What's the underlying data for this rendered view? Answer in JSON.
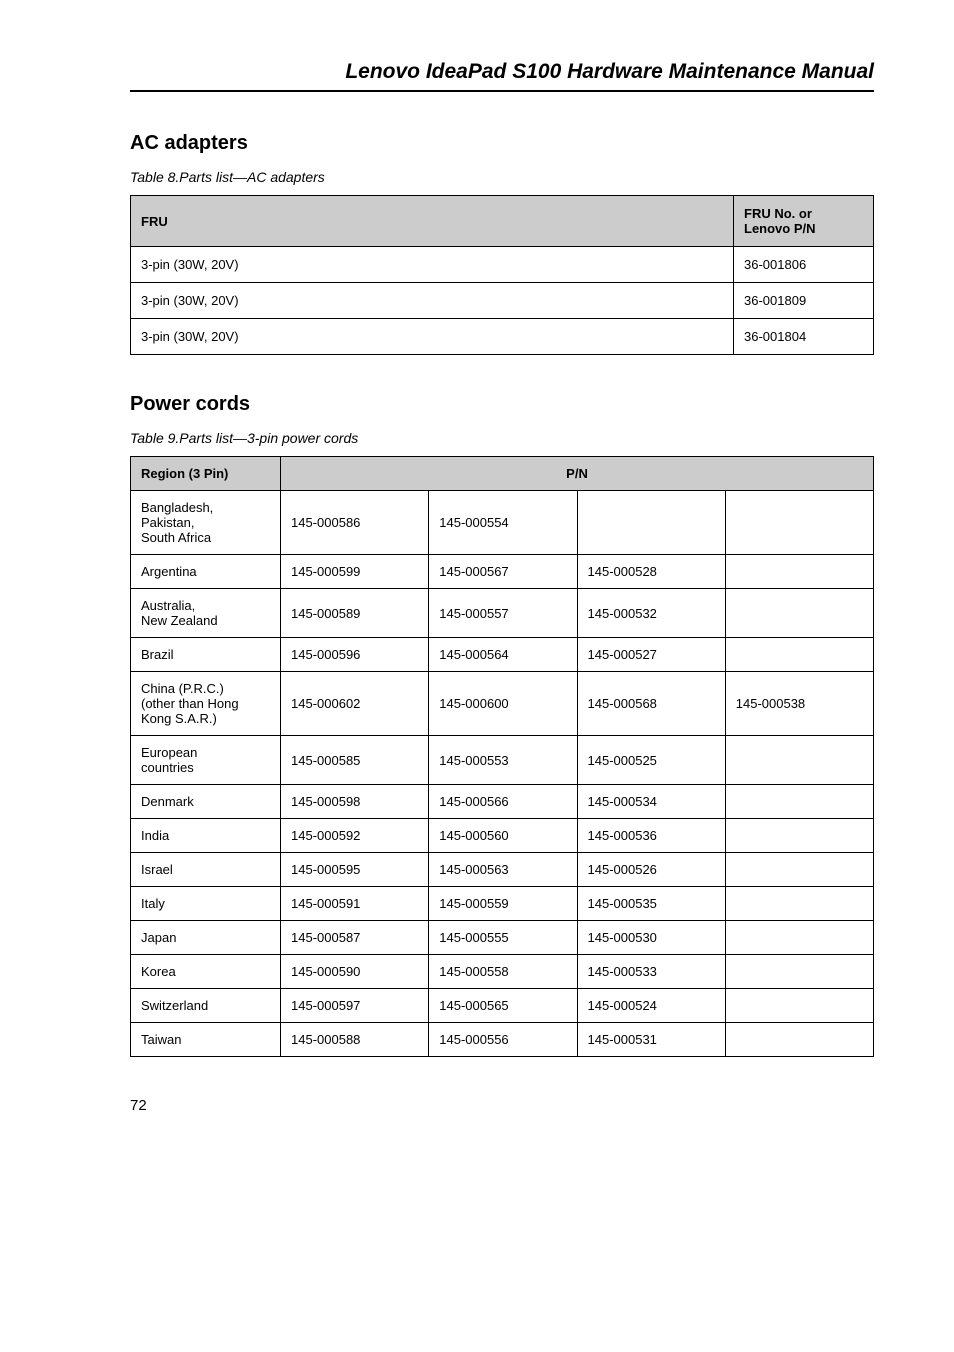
{
  "header": {
    "title": "Lenovo IdeaPad S100 Hardware Maintenance Manual"
  },
  "ac": {
    "heading": "AC adapters",
    "caption": "Table 8.Parts list—AC adapters",
    "col_fru": "FRU",
    "col_fruno_l1": "FRU No. or",
    "col_fruno_l2": "Lenovo P/N",
    "rows": [
      {
        "fru": "3-pin (30W, 20V)",
        "pn": "36-001806"
      },
      {
        "fru": "3-pin (30W, 20V)",
        "pn": "36-001809"
      },
      {
        "fru": "3-pin (30W, 20V)",
        "pn": "36-001804"
      }
    ]
  },
  "cords": {
    "heading": "Power cords",
    "caption": "Table 9.Parts list—3-pin power cords",
    "col_region": "Region (3 Pin)",
    "col_pn": "P/N",
    "rows": [
      {
        "region": "Bangladesh,\nPakistan,\nSouth Africa",
        "p1": "145-000586",
        "p2": "145-000554",
        "p3": "",
        "p4": "",
        "tall": true
      },
      {
        "region": "Argentina",
        "p1": "145-000599",
        "p2": "145-000567",
        "p3": "145-000528",
        "p4": ""
      },
      {
        "region": "Australia,\nNew Zealand",
        "p1": "145-000589",
        "p2": "145-000557",
        "p3": "145-000532",
        "p4": "",
        "med": true
      },
      {
        "region": "Brazil",
        "p1": "145-000596",
        "p2": "145-000564",
        "p3": "145-000527",
        "p4": ""
      },
      {
        "region": "China (P.R.C.)\n(other than Hong\nKong S.A.R.)",
        "p1": "145-000602",
        "p2": "145-000600",
        "p3": "145-000568",
        "p4": "145-000538",
        "tall": true
      },
      {
        "region": "European\ncountries",
        "p1": "145-000585",
        "p2": "145-000553",
        "p3": "145-000525",
        "p4": "",
        "med": true
      },
      {
        "region": "Denmark",
        "p1": "145-000598",
        "p2": "145-000566",
        "p3": "145-000534",
        "p4": ""
      },
      {
        "region": "India",
        "p1": "145-000592",
        "p2": "145-000560",
        "p3": "145-000536",
        "p4": ""
      },
      {
        "region": "Israel",
        "p1": "145-000595",
        "p2": "145-000563",
        "p3": "145-000526",
        "p4": ""
      },
      {
        "region": "Italy",
        "p1": "145-000591",
        "p2": "145-000559",
        "p3": "145-000535",
        "p4": ""
      },
      {
        "region": "Japan",
        "p1": "145-000587",
        "p2": "145-000555",
        "p3": "145-000530",
        "p4": ""
      },
      {
        "region": "Korea",
        "p1": "145-000590",
        "p2": "145-000558",
        "p3": "145-000533",
        "p4": ""
      },
      {
        "region": "Switzerland",
        "p1": "145-000597",
        "p2": "145-000565",
        "p3": "145-000524",
        "p4": ""
      },
      {
        "region": "Taiwan",
        "p1": "145-000588",
        "p2": "145-000556",
        "p3": "145-000531",
        "p4": ""
      }
    ]
  },
  "page_number": "72"
}
